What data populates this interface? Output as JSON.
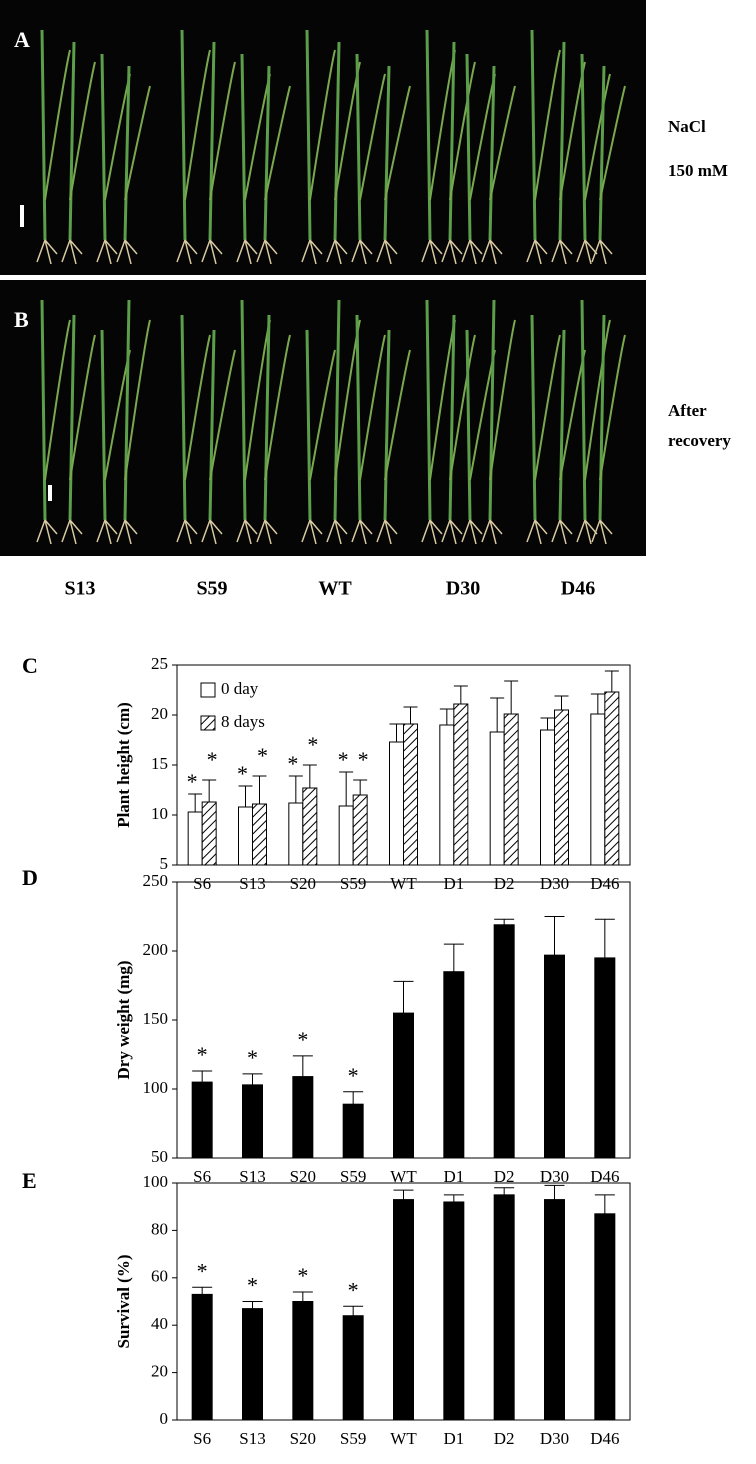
{
  "panel_a": {
    "label": "A",
    "condition": [
      "NaCl",
      "150 mM"
    ]
  },
  "panel_b": {
    "label": "B",
    "condition": [
      "After",
      "recovery"
    ]
  },
  "photo_lines": [
    "S13",
    "S59",
    "WT",
    "D30",
    "D46"
  ],
  "chart_data": [
    {
      "type": "bar",
      "panel": "C",
      "ylabel": "Plant height (cm)",
      "categories": [
        "S6",
        "S13",
        "S20",
        "S59",
        "WT",
        "D1",
        "D2",
        "D30",
        "D46"
      ],
      "series": [
        {
          "name": "0 day",
          "color": "#ffffff",
          "hatch": false,
          "values": [
            10.3,
            10.8,
            11.2,
            10.9,
            17.3,
            19.0,
            18.3,
            18.5,
            20.1
          ],
          "errors": [
            1.8,
            2.1,
            2.7,
            3.4,
            1.8,
            1.6,
            3.4,
            1.2,
            2.0
          ],
          "significance": [
            "*",
            "*",
            "*",
            "*",
            null,
            null,
            null,
            null,
            null
          ]
        },
        {
          "name": "8 days",
          "color": "#ffffff",
          "hatch": true,
          "values": [
            11.3,
            11.1,
            12.7,
            12.0,
            19.1,
            21.1,
            20.1,
            20.5,
            22.3
          ],
          "errors": [
            2.2,
            2.8,
            2.3,
            1.5,
            1.7,
            1.8,
            3.3,
            1.4,
            2.1
          ],
          "significance": [
            "*",
            "*",
            "*",
            "*",
            null,
            null,
            null,
            null,
            null
          ]
        }
      ],
      "ylim": [
        5,
        25
      ],
      "yticks": [
        5,
        10,
        15,
        20,
        25
      ],
      "legend": "top-left"
    },
    {
      "type": "bar",
      "panel": "D",
      "ylabel": "Dry weight (mg)",
      "categories": [
        "S6",
        "S13",
        "S20",
        "S59",
        "WT",
        "D1",
        "D2",
        "D30",
        "D46"
      ],
      "series": [
        {
          "color": "#000000",
          "hatch": false,
          "values": [
            105,
            103,
            109,
            89,
            155,
            185,
            219,
            197,
            195
          ],
          "errors": [
            8,
            8,
            15,
            9,
            23,
            20,
            4,
            28,
            28
          ],
          "significance": [
            "*",
            "*",
            "*",
            "*",
            null,
            null,
            null,
            null,
            null
          ]
        }
      ],
      "ylim": [
        50,
        250
      ],
      "yticks": [
        50,
        100,
        150,
        200,
        250
      ]
    },
    {
      "type": "bar",
      "panel": "E",
      "ylabel": "Survival (%)",
      "categories": [
        "S6",
        "S13",
        "S20",
        "S59",
        "WT",
        "D1",
        "D2",
        "D30",
        "D46"
      ],
      "series": [
        {
          "color": "#000000",
          "hatch": false,
          "values": [
            53,
            47,
            50,
            44,
            93,
            92,
            95,
            93,
            87
          ],
          "errors": [
            3,
            3,
            4,
            4,
            4,
            3,
            3,
            6,
            8
          ],
          "significance": [
            "*",
            "*",
            "*",
            "*",
            null,
            null,
            null,
            null,
            null
          ]
        }
      ],
      "ylim": [
        0,
        100
      ],
      "yticks": [
        0,
        20,
        40,
        60,
        80,
        100
      ]
    }
  ]
}
